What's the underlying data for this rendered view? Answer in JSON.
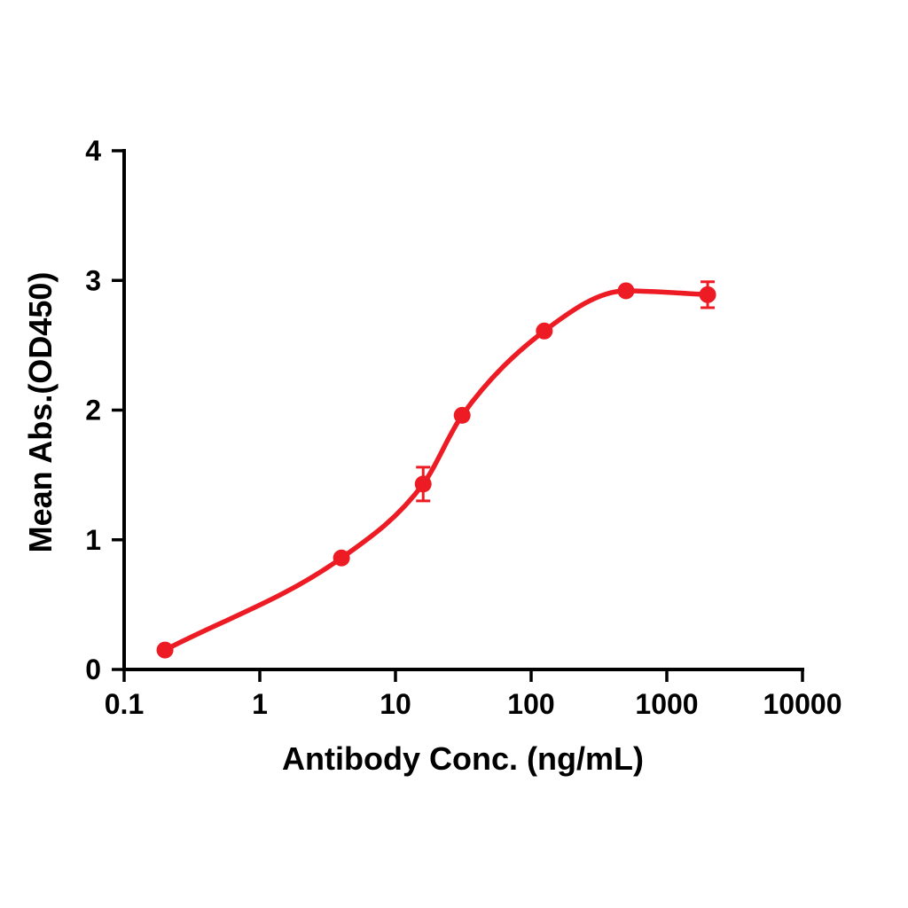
{
  "chart_data": {
    "type": "scatter",
    "fit": "sigmoidal dose-response curve",
    "title": "",
    "xlabel": "Antibody Conc. (ng/mL)",
    "ylabel": "Mean Abs.(OD450)",
    "x_scale": "log10",
    "xlim": [
      0.1,
      10000
    ],
    "ylim": [
      0,
      4
    ],
    "x_tick_values": [
      0.1,
      1,
      10,
      100,
      1000,
      10000
    ],
    "x_tick_labels": [
      "0.1",
      "1",
      "10",
      "100",
      "1000",
      "10000"
    ],
    "y_tick_values": [
      0,
      1,
      2,
      3,
      4
    ],
    "y_tick_labels": [
      "0",
      "1",
      "2",
      "3",
      "4"
    ],
    "grid": false,
    "legend": null,
    "axis_color": "#000000",
    "background": "#FFFFFF",
    "series": [
      {
        "color": "#ED1C24",
        "marker": "circle",
        "points": [
          {
            "x": 0.2,
            "y": 0.15,
            "err": 0
          },
          {
            "x": 4,
            "y": 0.86,
            "err": 0
          },
          {
            "x": 16,
            "y": 1.43,
            "err": 0.13
          },
          {
            "x": 31,
            "y": 1.96,
            "err": 0
          },
          {
            "x": 125,
            "y": 2.61,
            "err": 0
          },
          {
            "x": 500,
            "y": 2.92,
            "err": 0
          },
          {
            "x": 2000,
            "y": 2.89,
            "err": 0.1
          }
        ]
      }
    ]
  }
}
